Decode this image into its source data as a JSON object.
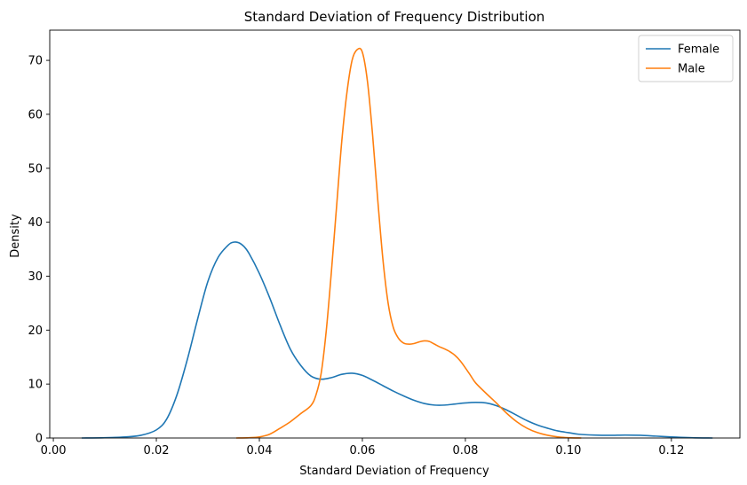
{
  "chart_data": {
    "type": "line",
    "title": "Standard Deviation of Frequency Distribution",
    "xlabel": "Standard Deviation of Frequency",
    "ylabel": "Density",
    "xlim": [
      -0.0007,
      0.1333
    ],
    "ylim": [
      0,
      75.6
    ],
    "xticks": [
      "0.00",
      "0.02",
      "0.04",
      "0.06",
      "0.08",
      "0.10",
      "0.12"
    ],
    "xtick_values": [
      0.0,
      0.02,
      0.04,
      0.06,
      0.08,
      0.1,
      0.12
    ],
    "yticks": [
      "0",
      "10",
      "20",
      "30",
      "40",
      "50",
      "60",
      "70"
    ],
    "ytick_values": [
      0,
      10,
      20,
      30,
      40,
      50,
      60,
      70
    ],
    "grid": false,
    "legend_position": "upper right",
    "series": [
      {
        "name": "Female",
        "color": "#1f77b4",
        "x": [
          0.0055,
          0.01,
          0.014,
          0.017,
          0.02,
          0.022,
          0.024,
          0.026,
          0.028,
          0.03,
          0.032,
          0.034,
          0.035,
          0.036,
          0.037,
          0.038,
          0.04,
          0.042,
          0.044,
          0.046,
          0.048,
          0.05,
          0.052,
          0.054,
          0.056,
          0.058,
          0.06,
          0.062,
          0.064,
          0.066,
          0.068,
          0.07,
          0.072,
          0.074,
          0.076,
          0.078,
          0.08,
          0.082,
          0.084,
          0.086,
          0.088,
          0.09,
          0.092,
          0.094,
          0.096,
          0.098,
          0.1,
          0.102,
          0.105,
          0.108,
          0.111,
          0.114,
          0.117,
          0.12,
          0.124,
          0.128
        ],
        "y": [
          0.0,
          0.05,
          0.2,
          0.5,
          1.5,
          3.5,
          8.0,
          14.5,
          22.0,
          29.0,
          33.5,
          35.8,
          36.3,
          36.2,
          35.5,
          34.2,
          30.5,
          26.0,
          21.0,
          16.5,
          13.5,
          11.5,
          10.9,
          11.2,
          11.8,
          12.0,
          11.6,
          10.7,
          9.7,
          8.7,
          7.8,
          7.0,
          6.4,
          6.1,
          6.1,
          6.3,
          6.5,
          6.6,
          6.5,
          6.0,
          5.2,
          4.2,
          3.2,
          2.4,
          1.8,
          1.3,
          1.0,
          0.7,
          0.55,
          0.5,
          0.55,
          0.5,
          0.35,
          0.2,
          0.05,
          0.0
        ]
      },
      {
        "name": "Male",
        "color": "#ff7f0e",
        "x": [
          0.0355,
          0.038,
          0.04,
          0.042,
          0.044,
          0.046,
          0.048,
          0.05,
          0.051,
          0.052,
          0.053,
          0.054,
          0.055,
          0.056,
          0.057,
          0.058,
          0.059,
          0.06,
          0.061,
          0.062,
          0.063,
          0.064,
          0.065,
          0.066,
          0.067,
          0.068,
          0.069,
          0.07,
          0.071,
          0.072,
          0.073,
          0.074,
          0.075,
          0.076,
          0.077,
          0.078,
          0.079,
          0.08,
          0.081,
          0.082,
          0.084,
          0.086,
          0.088,
          0.09,
          0.092,
          0.094,
          0.096,
          0.098,
          0.1,
          0.1025
        ],
        "y": [
          0.0,
          0.05,
          0.2,
          0.7,
          1.8,
          3.0,
          4.5,
          6.0,
          8.0,
          12.0,
          20.0,
          31.0,
          43.0,
          55.0,
          64.0,
          70.0,
          72.0,
          71.5,
          66.0,
          56.0,
          44.0,
          33.0,
          25.0,
          20.5,
          18.5,
          17.6,
          17.4,
          17.5,
          17.8,
          18.0,
          17.9,
          17.4,
          16.9,
          16.5,
          16.0,
          15.3,
          14.3,
          13.0,
          11.6,
          10.2,
          8.3,
          6.5,
          4.6,
          3.0,
          1.8,
          1.0,
          0.5,
          0.2,
          0.05,
          0.0
        ]
      }
    ]
  }
}
